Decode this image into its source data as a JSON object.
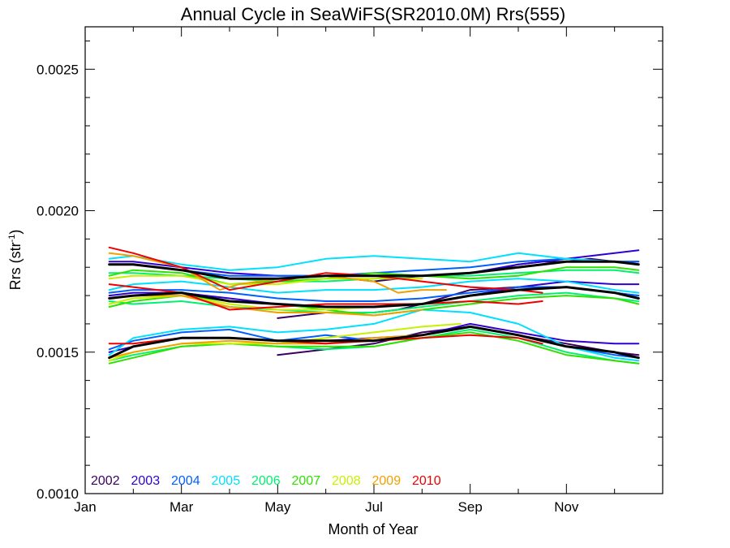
{
  "chart_data": {
    "type": "line",
    "title": "Annual Cycle in SeaWiFS(SR2010.0M) Rrs(555)",
    "xlabel": "Month of Year",
    "ylabel_main": "Rrs (str",
    "ylabel_sup": "-1",
    "ylabel_close": ")",
    "xlim": [
      1,
      13
    ],
    "ylim": [
      0.001,
      0.00265
    ],
    "x_ticks": [
      {
        "value": 1,
        "label": "Jan"
      },
      {
        "value": 3,
        "label": "Mar"
      },
      {
        "value": 5,
        "label": "May"
      },
      {
        "value": 7,
        "label": "Jul"
      },
      {
        "value": 9,
        "label": "Sep"
      },
      {
        "value": 11,
        "label": "Nov"
      }
    ],
    "x_minor_ticks": [
      2,
      4,
      6,
      8,
      10,
      12
    ],
    "y_ticks": [
      {
        "value": 0.001,
        "label": "0.0010"
      },
      {
        "value": 0.0015,
        "label": "0.0015"
      },
      {
        "value": 0.002,
        "label": "0.0020"
      },
      {
        "value": 0.0025,
        "label": "0.0025"
      }
    ],
    "y_minor_ticks": [
      0.0011,
      0.0012,
      0.0013,
      0.0014,
      0.0016,
      0.0017,
      0.0018,
      0.0019,
      0.0021,
      0.0022,
      0.0023,
      0.0024,
      0.0026
    ],
    "grid": false,
    "legend_position": "bottom-left",
    "years": [
      {
        "label": "2002",
        "color": "#3a0060"
      },
      {
        "label": "2003",
        "color": "#3000d0"
      },
      {
        "label": "2004",
        "color": "#0060ff"
      },
      {
        "label": "2005",
        "color": "#00e0ff"
      },
      {
        "label": "2006",
        "color": "#00f070"
      },
      {
        "label": "2007",
        "color": "#30e000"
      },
      {
        "label": "2008",
        "color": "#c8f000"
      },
      {
        "label": "2009",
        "color": "#f0a000"
      },
      {
        "label": "2010",
        "color": "#ee0000"
      }
    ],
    "series": [
      {
        "year": "2002",
        "band": "high",
        "x": [
          6.5,
          7.0,
          7.5,
          8.0,
          8.5,
          9.0,
          9.5,
          10.0,
          10.5,
          11.0,
          11.5,
          12.0,
          12.5
        ],
        "y": [
          0.00176,
          0.00175,
          0.00176,
          0.00177,
          0.00177,
          0.00178,
          0.00179,
          0.00181,
          0.00182,
          0.00182,
          0.00183,
          0.00182,
          0.00182
        ]
      },
      {
        "year": "2002",
        "band": "mid",
        "x": [
          5.0,
          6.0,
          7.0,
          7.5,
          8.0,
          9.0,
          10.0,
          11.0,
          12.0,
          12.5
        ],
        "y": [
          0.00162,
          0.00164,
          0.00164,
          0.00165,
          0.00167,
          0.00172,
          0.00173,
          0.00173,
          0.00171,
          0.0017
        ]
      },
      {
        "year": "2002",
        "band": "low",
        "x": [
          5.0,
          6.0,
          7.0,
          7.5,
          8.0,
          9.0,
          10.0,
          11.0,
          12.0,
          12.5
        ],
        "y": [
          0.00149,
          0.00151,
          0.00153,
          0.00155,
          0.00157,
          0.00159,
          0.00156,
          0.00153,
          0.0015,
          0.00149
        ]
      },
      {
        "year": "2003",
        "band": "high",
        "x": [
          1.5,
          2.0,
          3.0,
          4.0,
          5.0,
          6.0,
          7.0,
          8.0,
          9.0,
          10.0,
          11.0,
          12.0,
          12.5
        ],
        "y": [
          0.00182,
          0.00182,
          0.0018,
          0.00178,
          0.00177,
          0.00177,
          0.00177,
          0.00177,
          0.00178,
          0.00181,
          0.00183,
          0.00185,
          0.00186
        ]
      },
      {
        "year": "2003",
        "band": "mid",
        "x": [
          1.5,
          2.0,
          3.0,
          4.0,
          5.0,
          6.0,
          7.0,
          8.0,
          9.0,
          10.0,
          11.0,
          12.0,
          12.5
        ],
        "y": [
          0.0017,
          0.00171,
          0.00171,
          0.00169,
          0.00167,
          0.00166,
          0.00166,
          0.00167,
          0.0017,
          0.00173,
          0.00175,
          0.00174,
          0.00174
        ]
      },
      {
        "year": "2003",
        "band": "low",
        "x": [
          1.5,
          2.0,
          3.0,
          4.0,
          5.0,
          6.0,
          7.0,
          8.0,
          9.0,
          10.0,
          11.0,
          12.0,
          12.5
        ],
        "y": [
          0.0015,
          0.00152,
          0.00155,
          0.00155,
          0.00154,
          0.00154,
          0.00155,
          0.00156,
          0.0016,
          0.00157,
          0.00154,
          0.00153,
          0.00153
        ]
      },
      {
        "year": "2004",
        "band": "high",
        "x": [
          1.5,
          2.0,
          3.0,
          4.0,
          5.0,
          6.0,
          7.0,
          8.0,
          9.0,
          10.0,
          11.0,
          12.0,
          12.5
        ],
        "y": [
          0.00181,
          0.00181,
          0.00179,
          0.00177,
          0.00177,
          0.00177,
          0.00178,
          0.00179,
          0.0018,
          0.00182,
          0.00183,
          0.00182,
          0.00182
        ]
      },
      {
        "year": "2004",
        "band": "mid",
        "x": [
          1.5,
          2.0,
          3.0,
          4.0,
          5.0,
          6.0,
          7.0,
          8.0,
          9.0,
          10.0,
          11.0,
          12.0,
          12.5
        ],
        "y": [
          0.00171,
          0.00172,
          0.00172,
          0.00171,
          0.00169,
          0.00168,
          0.00168,
          0.00169,
          0.00171,
          0.00173,
          0.00173,
          0.00171,
          0.0017
        ]
      },
      {
        "year": "2004",
        "band": "low",
        "x": [
          1.5,
          2.0,
          3.0,
          4.0,
          5.0,
          6.0,
          7.0,
          8.0,
          9.0,
          10.0,
          11.0,
          12.0,
          12.5
        ],
        "y": [
          0.00151,
          0.00154,
          0.00157,
          0.00158,
          0.00154,
          0.00156,
          0.00154,
          0.00156,
          0.00159,
          0.00156,
          0.00152,
          0.00149,
          0.00148
        ]
      },
      {
        "year": "2005",
        "band": "high",
        "x": [
          1.5,
          2.0,
          3.0,
          4.0,
          5.0,
          6.0,
          7.0,
          8.0,
          9.0,
          10.0,
          11.0,
          12.0,
          12.5
        ],
        "y": [
          0.00183,
          0.00184,
          0.00181,
          0.00179,
          0.0018,
          0.00183,
          0.00184,
          0.00183,
          0.00182,
          0.00185,
          0.00183,
          0.00182,
          0.00181
        ]
      },
      {
        "year": "2005",
        "band": "mid",
        "x": [
          1.5,
          2.0,
          3.0,
          4.0,
          5.0,
          6.0,
          7.0,
          8.0,
          9.0,
          10.0,
          11.0,
          12.0,
          12.5
        ],
        "y": [
          0.00172,
          0.00174,
          0.00175,
          0.00173,
          0.00171,
          0.00172,
          0.00172,
          0.00173,
          0.00175,
          0.00176,
          0.00175,
          0.00172,
          0.00171
        ]
      },
      {
        "year": "2005",
        "band": "low",
        "x": [
          1.5,
          2.0,
          3.0,
          4.0,
          5.0,
          6.0,
          7.0,
          8.0,
          9.0,
          10.0,
          11.0,
          12.0,
          12.5
        ],
        "y": [
          0.00149,
          0.00155,
          0.00158,
          0.00159,
          0.00157,
          0.00158,
          0.0016,
          0.00165,
          0.00164,
          0.0016,
          0.00152,
          0.00148,
          0.00147
        ]
      },
      {
        "year": "2006",
        "band": "high",
        "x": [
          1.5,
          2.0,
          3.0,
          4.0,
          5.0,
          6.0,
          7.0,
          8.0,
          9.0,
          10.0,
          11.0,
          12.0,
          12.5
        ],
        "y": [
          0.00178,
          0.00178,
          0.00177,
          0.00176,
          0.00175,
          0.00175,
          0.00176,
          0.00177,
          0.00177,
          0.00178,
          0.00179,
          0.00179,
          0.00178
        ]
      },
      {
        "year": "2006",
        "band": "mid",
        "x": [
          1.5,
          2.0,
          3.0,
          4.0,
          5.0,
          6.0,
          7.0,
          8.0,
          9.0,
          10.0,
          11.0,
          12.0,
          12.5
        ],
        "y": [
          0.00168,
          0.00167,
          0.00168,
          0.00166,
          0.00165,
          0.00164,
          0.00164,
          0.00166,
          0.00168,
          0.0017,
          0.00171,
          0.00169,
          0.00168
        ]
      },
      {
        "year": "2006",
        "band": "low",
        "x": [
          1.5,
          2.0,
          3.0,
          4.0,
          5.0,
          6.0,
          7.0,
          8.0,
          9.0,
          10.0,
          11.0,
          12.0,
          12.5
        ],
        "y": [
          0.00147,
          0.00149,
          0.00152,
          0.00153,
          0.00152,
          0.00151,
          0.00152,
          0.00155,
          0.00158,
          0.00155,
          0.0015,
          0.00147,
          0.00146
        ]
      },
      {
        "year": "2007",
        "band": "high",
        "x": [
          1.5,
          2.0,
          3.0,
          4.0,
          5.0,
          6.0,
          7.0,
          8.0,
          9.0,
          10.0,
          11.0,
          12.0,
          12.5
        ],
        "y": [
          0.00177,
          0.00179,
          0.00178,
          0.00174,
          0.00175,
          0.00176,
          0.00178,
          0.00177,
          0.00176,
          0.00177,
          0.0018,
          0.0018,
          0.00179
        ]
      },
      {
        "year": "2007",
        "band": "mid",
        "x": [
          1.5,
          2.0,
          3.0,
          4.0,
          5.0,
          6.0,
          7.0,
          8.0,
          9.0,
          10.0,
          11.0,
          12.0,
          12.5
        ],
        "y": [
          0.00166,
          0.00168,
          0.0017,
          0.00168,
          0.00167,
          0.00165,
          0.00163,
          0.00165,
          0.00167,
          0.00169,
          0.0017,
          0.00169,
          0.00167
        ]
      },
      {
        "year": "2007",
        "band": "low",
        "x": [
          1.5,
          2.0,
          3.0,
          4.0,
          5.0,
          6.0,
          7.0,
          8.0,
          9.0,
          10.0,
          11.0,
          12.0,
          12.5
        ],
        "y": [
          0.00146,
          0.00148,
          0.00152,
          0.00153,
          0.00152,
          0.00152,
          0.00152,
          0.00155,
          0.00157,
          0.00154,
          0.00149,
          0.00147,
          0.00146
        ]
      },
      {
        "year": "2008",
        "band": "high",
        "x": [
          1.5,
          2.0,
          3.0,
          4.0,
          5.0,
          6.0,
          7.0,
          8.0
        ],
        "y": [
          0.00176,
          0.00177,
          0.00177,
          0.00174,
          0.00174,
          0.00176,
          0.00176,
          0.00176
        ]
      },
      {
        "year": "2008",
        "band": "mid",
        "x": [
          1.5,
          2.0,
          3.0,
          4.0,
          5.0,
          6.0,
          7.0,
          8.0
        ],
        "y": [
          0.00167,
          0.00169,
          0.0017,
          0.00167,
          0.00165,
          0.00165,
          0.00166,
          0.00167
        ]
      },
      {
        "year": "2008",
        "band": "low",
        "x": [
          1.5,
          2.0,
          3.0,
          4.0,
          5.0,
          6.0,
          7.0,
          8.0,
          8.8
        ],
        "y": [
          0.00147,
          0.0015,
          0.00153,
          0.00153,
          0.00153,
          0.00155,
          0.00157,
          0.00159,
          0.0016
        ]
      },
      {
        "year": "2009",
        "band": "high",
        "x": [
          1.5,
          2.0,
          3.0,
          3.8,
          4.2,
          5.0,
          6.0,
          7.0,
          7.5,
          8.0,
          8.5
        ],
        "y": [
          0.00185,
          0.00184,
          0.0018,
          0.00172,
          0.00174,
          0.00176,
          0.00177,
          0.00175,
          0.00171,
          0.00172,
          0.00172
        ]
      },
      {
        "year": "2009",
        "band": "mid",
        "x": [
          1.5,
          2.0,
          3.0,
          4.0,
          5.0,
          6.0,
          7.0,
          8.0
        ],
        "y": [
          0.00169,
          0.0017,
          0.0017,
          0.00166,
          0.00164,
          0.00164,
          0.00163,
          0.00165
        ]
      },
      {
        "year": "2009",
        "band": "low",
        "x": [
          1.5,
          2.0,
          3.0,
          4.0,
          5.0,
          6.0,
          7.0,
          8.0
        ],
        "y": [
          0.00148,
          0.0015,
          0.00153,
          0.00154,
          0.00153,
          0.00153,
          0.00155,
          0.00156
        ]
      },
      {
        "year": "2010",
        "band": "high",
        "x": [
          1.5,
          2.0,
          3.0,
          4.0,
          5.0,
          6.0,
          7.0,
          8.0,
          9.0,
          10.0,
          10.5
        ],
        "y": [
          0.00187,
          0.00185,
          0.0018,
          0.00172,
          0.00175,
          0.00178,
          0.00177,
          0.00175,
          0.00173,
          0.00172,
          0.00171
        ]
      },
      {
        "year": "2010",
        "band": "mid",
        "x": [
          1.5,
          2.0,
          3.0,
          4.0,
          5.0,
          6.0,
          7.0,
          8.0,
          9.0,
          10.0,
          10.5
        ],
        "y": [
          0.00174,
          0.00173,
          0.00171,
          0.00165,
          0.00166,
          0.00167,
          0.00167,
          0.00167,
          0.00168,
          0.00167,
          0.00168
        ]
      },
      {
        "year": "2010",
        "band": "low",
        "x": [
          1.5,
          2.0,
          3.0,
          4.0,
          5.0,
          6.0,
          7.0,
          8.0,
          9.0,
          10.0,
          10.5
        ],
        "y": [
          0.00153,
          0.00153,
          0.00155,
          0.00155,
          0.00154,
          0.00153,
          0.00154,
          0.00155,
          0.00156,
          0.00155,
          0.00153
        ]
      }
    ],
    "mean_series": [
      {
        "band": "high",
        "color": "#000000",
        "x": [
          1.5,
          2.0,
          3.0,
          4.0,
          5.0,
          6.0,
          7.0,
          8.0,
          9.0,
          10.0,
          11.0,
          12.0,
          12.5
        ],
        "y": [
          0.00181,
          0.00181,
          0.00179,
          0.00176,
          0.00176,
          0.00177,
          0.00177,
          0.00177,
          0.00178,
          0.0018,
          0.00182,
          0.00182,
          0.00181
        ]
      },
      {
        "band": "mid",
        "color": "#000000",
        "x": [
          1.5,
          2.0,
          3.0,
          4.0,
          5.0,
          6.0,
          7.0,
          8.0,
          9.0,
          10.0,
          11.0,
          12.0,
          12.5
        ],
        "y": [
          0.00169,
          0.0017,
          0.00171,
          0.00168,
          0.00167,
          0.00166,
          0.00166,
          0.00167,
          0.0017,
          0.00172,
          0.00173,
          0.00171,
          0.00169
        ]
      },
      {
        "band": "low",
        "color": "#000000",
        "x": [
          1.5,
          2.0,
          3.0,
          4.0,
          5.0,
          6.0,
          7.0,
          8.0,
          9.0,
          10.0,
          11.0,
          12.0,
          12.5
        ],
        "y": [
          0.00148,
          0.00152,
          0.00155,
          0.00155,
          0.00154,
          0.00154,
          0.00154,
          0.00156,
          0.00159,
          0.00156,
          0.00152,
          0.0015,
          0.00148
        ]
      }
    ]
  }
}
